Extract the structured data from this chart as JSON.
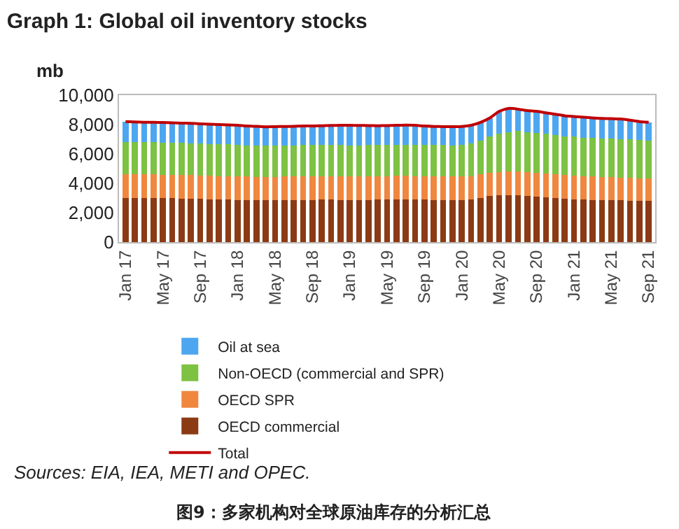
{
  "chart_data": {
    "type": "bar",
    "title": "Graph 1: Global oil inventory stocks",
    "ylabel": "mb",
    "categories": [
      "Jan 17",
      null,
      null,
      null,
      "May 17",
      null,
      null,
      null,
      "Sep 17",
      null,
      null,
      null,
      "Jan 18",
      null,
      null,
      null,
      "May 18",
      null,
      null,
      null,
      "Sep 18",
      null,
      null,
      null,
      "Jan 19",
      null,
      null,
      null,
      "May 19",
      null,
      null,
      null,
      "Sep 19",
      null,
      null,
      null,
      "Jan 20",
      null,
      null,
      null,
      "May 20",
      null,
      null,
      null,
      "Sep 20",
      null,
      null,
      null,
      "Jan 21",
      null,
      null,
      null,
      "May 21",
      null,
      null,
      null,
      "Sep 21"
    ],
    "stacked": true,
    "series": [
      {
        "name": "OECD commercial",
        "color": "#8b3a14",
        "values": [
          3000,
          3000,
          3010,
          3000,
          2990,
          2980,
          2970,
          2960,
          2940,
          2920,
          2900,
          2890,
          2880,
          2860,
          2850,
          2840,
          2850,
          2860,
          2870,
          2880,
          2880,
          2890,
          2890,
          2880,
          2870,
          2870,
          2880,
          2890,
          2900,
          2910,
          2910,
          2900,
          2890,
          2880,
          2880,
          2870,
          2880,
          2900,
          3000,
          3120,
          3180,
          3200,
          3190,
          3150,
          3100,
          3050,
          3000,
          2950,
          2920,
          2900,
          2880,
          2860,
          2850,
          2840,
          2830,
          2820,
          2800
        ]
      },
      {
        "name": "OECD SPR",
        "color": "#f0873f",
        "values": [
          1600,
          1600,
          1600,
          1600,
          1600,
          1600,
          1600,
          1600,
          1600,
          1600,
          1600,
          1600,
          1600,
          1600,
          1600,
          1600,
          1600,
          1600,
          1600,
          1600,
          1600,
          1600,
          1600,
          1600,
          1600,
          1600,
          1600,
          1600,
          1600,
          1600,
          1600,
          1600,
          1600,
          1600,
          1600,
          1600,
          1600,
          1600,
          1600,
          1600,
          1600,
          1600,
          1600,
          1600,
          1600,
          1600,
          1600,
          1600,
          1600,
          1590,
          1580,
          1570,
          1560,
          1550,
          1540,
          1530,
          1520
        ]
      },
      {
        "name": "Non-OECD (commercial and SPR)",
        "color": "#7dc242",
        "values": [
          2200,
          2200,
          2190,
          2190,
          2180,
          2180,
          2170,
          2170,
          2160,
          2160,
          2160,
          2160,
          2120,
          2120,
          2120,
          2120,
          2120,
          2120,
          2120,
          2120,
          2120,
          2120,
          2120,
          2120,
          2120,
          2120,
          2120,
          2120,
          2120,
          2120,
          2120,
          2120,
          2120,
          2120,
          2120,
          2120,
          2120,
          2200,
          2300,
          2480,
          2620,
          2700,
          2760,
          2750,
          2750,
          2750,
          2700,
          2650,
          2650,
          2620,
          2640,
          2620,
          2640,
          2610,
          2630,
          2600,
          2600
        ]
      },
      {
        "name": "Oil at sea",
        "color": "#4da6f0",
        "values": [
          1400,
          1380,
          1360,
          1360,
          1370,
          1360,
          1360,
          1350,
          1350,
          1340,
          1340,
          1330,
          1350,
          1320,
          1310,
          1290,
          1290,
          1290,
          1290,
          1300,
          1300,
          1310,
          1330,
          1350,
          1360,
          1350,
          1330,
          1310,
          1310,
          1320,
          1330,
          1330,
          1290,
          1270,
          1260,
          1270,
          1270,
          1250,
          1250,
          1250,
          1500,
          1600,
          1500,
          1450,
          1450,
          1400,
          1400,
          1400,
          1380,
          1390,
          1350,
          1370,
          1350,
          1380,
          1300,
          1250,
          1230
        ]
      },
      {
        "name": "Total",
        "type": "line",
        "color": "#c00000",
        "values": [
          8200,
          8180,
          8160,
          8150,
          8140,
          8120,
          8100,
          8080,
          8050,
          8020,
          8000,
          7980,
          7950,
          7900,
          7880,
          7850,
          7860,
          7870,
          7880,
          7900,
          7900,
          7920,
          7940,
          7950,
          7950,
          7940,
          7930,
          7920,
          7930,
          7950,
          7960,
          7950,
          7900,
          7870,
          7860,
          7860,
          7870,
          7950,
          8150,
          8450,
          8900,
          9100,
          9050,
          8950,
          8900,
          8800,
          8700,
          8600,
          8550,
          8500,
          8450,
          8420,
          8400,
          8380,
          8300,
          8200,
          8150
        ]
      }
    ],
    "ylim": [
      0,
      10000
    ],
    "yticks": [
      {
        "value": 0,
        "label": "0"
      },
      {
        "value": 2000,
        "label": "2,000"
      },
      {
        "value": 4000,
        "label": "4,000"
      },
      {
        "value": 6000,
        "label": "6,000"
      },
      {
        "value": 8000,
        "label": "8,000"
      },
      {
        "value": 10000,
        "label": "10,000"
      }
    ],
    "legend": "bottom",
    "annotations": [
      "Sources: EIA, IEA, METI and OPEC.",
      "图9：多家机构对全球原油库存的分析汇总"
    ]
  }
}
